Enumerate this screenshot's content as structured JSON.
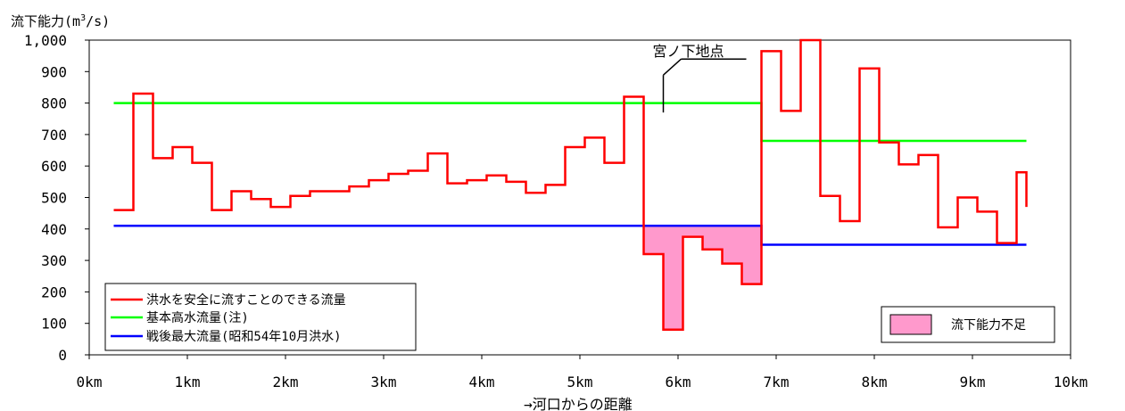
{
  "chart_data": {
    "type": "line",
    "ylabel": "流下能力(m³/s)",
    "xlabel": "→河口からの距離",
    "ylim": [
      0,
      1000
    ],
    "xlim": [
      0,
      10
    ],
    "y_ticks": [
      "0",
      "100",
      "200",
      "300",
      "400",
      "500",
      "600",
      "700",
      "800",
      "900",
      "1,000"
    ],
    "x_ticks": [
      "0km",
      "1km",
      "2km",
      "3km",
      "4km",
      "5km",
      "6km",
      "7km",
      "8km",
      "9km",
      "10km"
    ],
    "grid": false,
    "legend_position": "bottom-left",
    "series": [
      {
        "name": "洪水を安全に流すことのできる流量",
        "color": "#ff0000",
        "step": true,
        "x": [
          0.25,
          0.45,
          0.65,
          0.85,
          1.05,
          1.25,
          1.45,
          1.65,
          1.85,
          2.05,
          2.25,
          2.45,
          2.65,
          2.85,
          3.05,
          3.25,
          3.45,
          3.65,
          3.85,
          4.05,
          4.25,
          4.45,
          4.65,
          4.85,
          5.05,
          5.25,
          5.45,
          5.65,
          5.85,
          6.05,
          6.25,
          6.45,
          6.65,
          6.85,
          7.05,
          7.25,
          7.45,
          7.65,
          7.85,
          8.05,
          8.25,
          8.45,
          8.65,
          8.85,
          9.05,
          9.25,
          9.45,
          9.55
        ],
        "values": [
          460,
          830,
          625,
          660,
          610,
          460,
          520,
          495,
          470,
          505,
          520,
          520,
          535,
          555,
          575,
          585,
          640,
          545,
          555,
          570,
          550,
          515,
          540,
          660,
          690,
          610,
          820,
          320,
          80,
          375,
          335,
          290,
          225,
          965,
          775,
          1000,
          505,
          425,
          910,
          675,
          605,
          635,
          405,
          500,
          455,
          355,
          580,
          470
        ]
      },
      {
        "name": "基本高水流量(注)",
        "color": "#00ff00",
        "step": true,
        "x": [
          0.25,
          6.85,
          9.55
        ],
        "values": [
          800,
          680,
          680
        ]
      },
      {
        "name": "戦後最大流量(昭和54年10月洪水)",
        "color": "#0000ff",
        "step": true,
        "x": [
          0.25,
          6.85,
          9.55
        ],
        "values": [
          410,
          350,
          350
        ]
      }
    ],
    "shortfall_label": "流下能力不足",
    "shortfall_color": "#ff99cc",
    "annotation": {
      "text": "宮ノ下地点",
      "x": 5.85,
      "y": 770
    }
  }
}
